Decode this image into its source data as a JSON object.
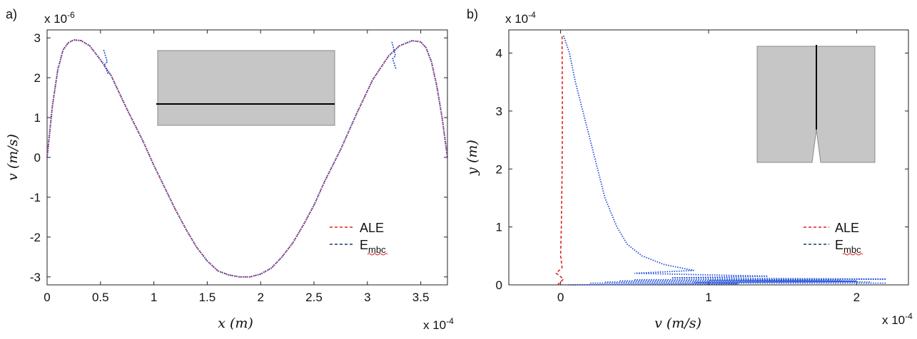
{
  "chart_data": [
    {
      "type": "line",
      "panel_label": "a)",
      "xlabel": "x (m)",
      "ylabel": "v (m/s)",
      "x_multiplier": "x 10-4",
      "y_multiplier": "x 10-6",
      "x_multiplier_base": "x 10",
      "x_multiplier_exp": "-4",
      "y_multiplier_base": "x 10",
      "y_multiplier_exp": "-6",
      "xlim": [
        0,
        3.75
      ],
      "ylim": [
        -3.2,
        3.2
      ],
      "xticks": [
        0,
        0.5,
        1,
        1.5,
        2,
        2.5,
        3,
        3.5
      ],
      "xtick_labels": [
        "0",
        "0.5",
        "1",
        "1.5",
        "2",
        "2.5",
        "3",
        "3.5"
      ],
      "yticks": [
        3,
        2,
        1,
        0,
        -1,
        -2,
        -3
      ],
      "ytick_labels": [
        "3",
        "2",
        "1",
        "0",
        "-1",
        "-2",
        "-3"
      ],
      "series": [
        {
          "name": "ALE",
          "color": "#e0201b",
          "style": "dashed",
          "x": [
            0,
            0.05,
            0.1,
            0.15,
            0.2,
            0.25,
            0.32,
            0.4,
            0.5,
            0.6,
            0.75,
            0.9,
            1.0,
            1.1,
            1.2,
            1.3,
            1.4,
            1.5,
            1.6,
            1.7,
            1.8,
            1.9,
            2.0,
            2.1,
            2.2,
            2.3,
            2.4,
            2.5,
            2.6,
            2.75,
            2.9,
            3.05,
            3.2,
            3.3,
            3.42,
            3.5,
            3.55,
            3.6,
            3.65,
            3.7,
            3.75
          ],
          "y": [
            0,
            1.3,
            2.2,
            2.7,
            2.88,
            2.95,
            2.93,
            2.8,
            2.45,
            2.05,
            1.2,
            0.4,
            -0.2,
            -0.75,
            -1.3,
            -1.8,
            -2.25,
            -2.6,
            -2.85,
            -2.95,
            -3.0,
            -3.0,
            -2.93,
            -2.78,
            -2.5,
            -2.15,
            -1.7,
            -1.2,
            -0.6,
            0.2,
            1.1,
            1.95,
            2.55,
            2.8,
            2.93,
            2.9,
            2.75,
            2.4,
            1.8,
            1.0,
            0
          ]
        },
        {
          "name": "E_mbc",
          "color": "#1f4fd8",
          "style": "dotted",
          "spikes": [
            {
              "x": 0.55,
              "y_lo": 2.1,
              "y_hi": 2.7
            },
            {
              "x": 3.25,
              "y_lo": 2.2,
              "y_hi": 2.9
            }
          ]
        }
      ],
      "legend": {
        "placement": "right",
        "entries": [
          {
            "label": "ALE",
            "sub": ""
          },
          {
            "label": "E",
            "sub": "mbc"
          }
        ]
      },
      "inset": {
        "description": "horizontal line across rectangle"
      }
    },
    {
      "type": "line",
      "panel_label": "b)",
      "xlabel": "v (m/s)",
      "ylabel": "y (m)",
      "x_multiplier": "x 10-4",
      "y_multiplier": "x 10-4",
      "x_multiplier_base": "x 10",
      "x_multiplier_exp": "-4",
      "y_multiplier_base": "x 10",
      "y_multiplier_exp": "-4",
      "xlim": [
        -0.35,
        2.35
      ],
      "ylim": [
        0,
        4.4
      ],
      "xticks": [
        0,
        1,
        2
      ],
      "xtick_labels": [
        "0",
        "1",
        "2"
      ],
      "yticks": [
        4,
        3,
        2,
        1,
        0
      ],
      "ytick_labels": [
        "4",
        "3",
        "2",
        "1",
        "0"
      ],
      "series": [
        {
          "name": "ALE",
          "color": "#e0201b",
          "style": "dashed",
          "y": [
            0,
            0.1,
            0.2,
            0.3,
            0.5,
            1.0,
            2.0,
            3.0,
            4.0,
            4.3
          ],
          "x": [
            -0.02,
            0.02,
            -0.03,
            0.01,
            0.0,
            0.005,
            0.01,
            0.012,
            0.01,
            0.01
          ]
        },
        {
          "name": "E_mbc",
          "color": "#1f4fd8",
          "style": "dotted",
          "y": [
            4.3,
            4.0,
            3.5,
            3.0,
            2.5,
            2.0,
            1.5,
            1.0,
            0.7,
            0.5,
            0.35,
            0.25,
            0.2,
            0.15,
            0.12,
            0.1,
            0.08,
            0.06,
            0.04,
            0.02,
            0.0
          ],
          "x": [
            0.02,
            0.06,
            0.1,
            0.15,
            0.2,
            0.25,
            0.3,
            0.38,
            0.45,
            0.55,
            0.7,
            0.9,
            0.5,
            1.4,
            0.75,
            2.2,
            1.0,
            2.0,
            0.9,
            1.2,
            0.05
          ]
        }
      ],
      "legend": {
        "placement": "right",
        "entries": [
          {
            "label": "ALE",
            "sub": ""
          },
          {
            "label": "E",
            "sub": "mbc"
          }
        ]
      },
      "inset": {
        "description": "vertical line with notch in rectangle"
      }
    }
  ]
}
